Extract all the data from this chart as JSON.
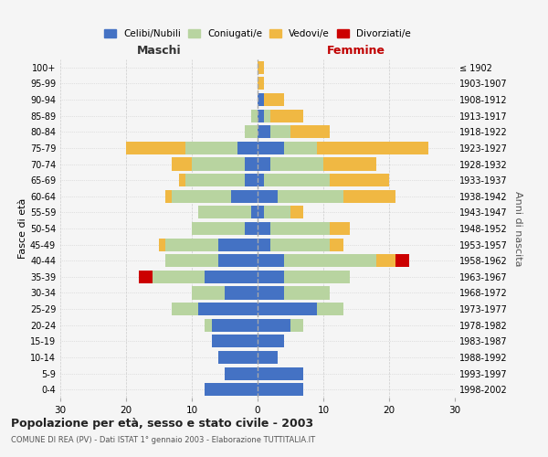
{
  "age_groups": [
    "0-4",
    "5-9",
    "10-14",
    "15-19",
    "20-24",
    "25-29",
    "30-34",
    "35-39",
    "40-44",
    "45-49",
    "50-54",
    "55-59",
    "60-64",
    "65-69",
    "70-74",
    "75-79",
    "80-84",
    "85-89",
    "90-94",
    "95-99",
    "100+"
  ],
  "birth_years": [
    "1998-2002",
    "1993-1997",
    "1988-1992",
    "1983-1987",
    "1978-1982",
    "1973-1977",
    "1968-1972",
    "1963-1967",
    "1958-1962",
    "1953-1957",
    "1948-1952",
    "1943-1947",
    "1938-1942",
    "1933-1937",
    "1928-1932",
    "1923-1927",
    "1918-1922",
    "1913-1917",
    "1908-1912",
    "1903-1907",
    "≤ 1902"
  ],
  "male_celibe": [
    8,
    5,
    6,
    7,
    7,
    9,
    5,
    8,
    6,
    6,
    2,
    1,
    4,
    2,
    2,
    3,
    0,
    0,
    0,
    0,
    0
  ],
  "male_coniugato": [
    0,
    0,
    0,
    0,
    1,
    4,
    5,
    8,
    8,
    8,
    8,
    8,
    9,
    9,
    8,
    8,
    2,
    1,
    0,
    0,
    0
  ],
  "male_vedovo": [
    0,
    0,
    0,
    0,
    0,
    0,
    0,
    0,
    0,
    1,
    0,
    0,
    1,
    1,
    3,
    9,
    0,
    0,
    0,
    0,
    0
  ],
  "male_divorziato": [
    0,
    0,
    0,
    0,
    0,
    0,
    0,
    2,
    0,
    0,
    0,
    0,
    0,
    0,
    0,
    0,
    0,
    0,
    0,
    0,
    0
  ],
  "female_celibe": [
    7,
    7,
    3,
    4,
    5,
    9,
    4,
    4,
    4,
    2,
    2,
    1,
    3,
    1,
    2,
    4,
    2,
    1,
    1,
    0,
    0
  ],
  "female_coniugato": [
    0,
    0,
    0,
    0,
    2,
    4,
    7,
    10,
    14,
    9,
    9,
    4,
    10,
    10,
    8,
    5,
    3,
    1,
    0,
    0,
    0
  ],
  "female_vedovo": [
    0,
    0,
    0,
    0,
    0,
    0,
    0,
    0,
    3,
    2,
    3,
    2,
    8,
    9,
    8,
    17,
    6,
    5,
    3,
    1,
    1
  ],
  "female_divorziato": [
    0,
    0,
    0,
    0,
    0,
    0,
    0,
    0,
    2,
    0,
    0,
    0,
    0,
    0,
    0,
    0,
    0,
    0,
    0,
    0,
    0
  ],
  "color_celibe": "#4472c4",
  "color_coniugato": "#b8d4a0",
  "color_vedovo": "#f0b843",
  "color_divorziato": "#cc0000",
  "title": "Popolazione per età, sesso e stato civile - 2003",
  "subtitle": "COMUNE DI REA (PV) - Dati ISTAT 1° gennaio 2003 - Elaborazione TUTTITALIA.IT",
  "xlabel_left": "Maschi",
  "xlabel_right": "Femmine",
  "ylabel_left": "Fasce di età",
  "ylabel_right": "Anni di nascita",
  "xlim": 30,
  "legend_labels": [
    "Celibi/Nubili",
    "Coniugati/e",
    "Vedovi/e",
    "Divorziati/e"
  ],
  "background_color": "#f5f5f5",
  "grid_color": "#cccccc"
}
